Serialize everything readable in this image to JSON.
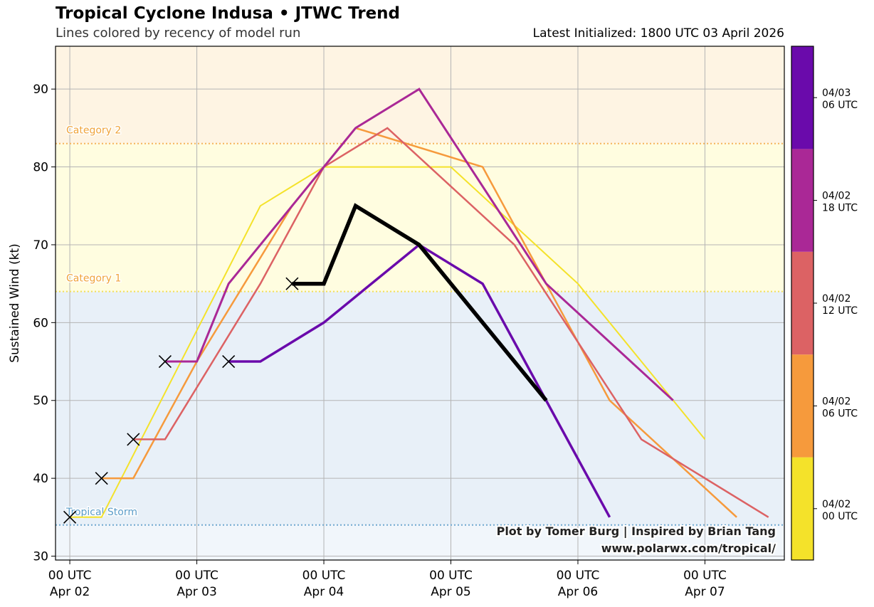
{
  "header": {
    "title": "Tropical Cyclone Indusa • JTWC Trend",
    "subtitle": "Lines colored by recency of model run",
    "latest": "Latest Initialized: 1800 UTC 03 April 2026"
  },
  "credits": {
    "line1": "Plot by Tomer Burg | Inspired by Brian Tang",
    "line2": "www.polarwx.com/tropical/"
  },
  "chart_data": {
    "type": "line",
    "title": "Tropical Cyclone Indusa • JTWC Trend",
    "subtitle": "Lines colored by recency of model run",
    "ylabel": "Sustained Wind (kt)",
    "ylim": [
      29.5,
      95.5
    ],
    "xlim": [
      "2026-04-01 21:18",
      "2026-04-07 15:00"
    ],
    "yticks": [
      30,
      40,
      50,
      60,
      70,
      80,
      90
    ],
    "xticks": [
      {
        "t": "2026-04-02 00:00",
        "l1": "00 UTC",
        "l2": "Apr 02"
      },
      {
        "t": "2026-04-03 00:00",
        "l1": "00 UTC",
        "l2": "Apr 03"
      },
      {
        "t": "2026-04-04 00:00",
        "l1": "00 UTC",
        "l2": "Apr 04"
      },
      {
        "t": "2026-04-05 00:00",
        "l1": "00 UTC",
        "l2": "Apr 05"
      },
      {
        "t": "2026-04-06 00:00",
        "l1": "00 UTC",
        "l2": "Apr 06"
      },
      {
        "t": "2026-04-07 00:00",
        "l1": "00 UTC",
        "l2": "Apr 07"
      }
    ],
    "grid": true,
    "thresholds": [
      {
        "label": "Tropical Storm",
        "value": 34,
        "color": "#6fa8d0",
        "text_color": "#5a9cc8"
      },
      {
        "label": "Category 1",
        "value": 64,
        "color": "#f2df5a",
        "text_color": "#f0a43a"
      },
      {
        "label": "Category 2",
        "value": 83,
        "color": "#f5b45a",
        "text_color": "#f0a43a"
      }
    ],
    "bands": [
      {
        "from": 29.5,
        "to": 34,
        "color": "#f1f6fb"
      },
      {
        "from": 34,
        "to": 64,
        "color": "#e8f0f8"
      },
      {
        "from": 64,
        "to": 83,
        "color": "#fffde0"
      },
      {
        "from": 83,
        "to": 95.5,
        "color": "#fef4e3"
      }
    ],
    "series": [
      {
        "run": "2026-04-02 00:00",
        "color": "#f4e22a",
        "width": 2,
        "x": [
          "2026-04-02 00:00",
          "2026-04-02 06:00",
          "2026-04-03 12:00",
          "2026-04-04 00:00",
          "2026-04-05 00:00",
          "2026-04-06 00:00",
          "2026-04-07 00:00"
        ],
        "y": [
          35,
          35,
          75,
          80,
          80,
          65,
          45
        ]
      },
      {
        "run": "2026-04-02 06:00",
        "color": "#f69a3c",
        "width": 2.5,
        "x": [
          "2026-04-02 06:00",
          "2026-04-02 12:00",
          "2026-04-03 00:00",
          "2026-04-03 18:00",
          "2026-04-04 06:00",
          "2026-04-05 06:00",
          "2026-04-06 06:00",
          "2026-04-07 06:00"
        ],
        "y": [
          40,
          40,
          55,
          75,
          85,
          80,
          50,
          35
        ]
      },
      {
        "run": "2026-04-02 12:00",
        "color": "#dc6264",
        "width": 2.5,
        "x": [
          "2026-04-02 12:00",
          "2026-04-02 18:00",
          "2026-04-03 12:00",
          "2026-04-04 00:00",
          "2026-04-04 12:00",
          "2026-04-05 12:00",
          "2026-04-06 12:00",
          "2026-04-07 12:00"
        ],
        "y": [
          45,
          45,
          65,
          80,
          85,
          70,
          45,
          35
        ]
      },
      {
        "run": "2026-04-02 18:00",
        "color": "#aa2896",
        "width": 3,
        "x": [
          "2026-04-02 18:00",
          "2026-04-03 00:00",
          "2026-04-03 06:00",
          "2026-04-04 06:00",
          "2026-04-04 18:00",
          "2026-04-05 18:00",
          "2026-04-06 18:00"
        ],
        "y": [
          55,
          55,
          65,
          85,
          90,
          65,
          50
        ]
      },
      {
        "run": "2026-04-03 06:00",
        "color": "#6a0aab",
        "width": 3.5,
        "x": [
          "2026-04-03 06:00",
          "2026-04-03 12:00",
          "2026-04-04 00:00",
          "2026-04-04 18:00",
          "2026-04-05 06:00",
          "2026-04-06 06:00"
        ],
        "y": [
          55,
          55,
          60,
          70,
          65,
          35
        ]
      },
      {
        "run": "2026-04-03 18:00",
        "color": "#000000",
        "width": 5.5,
        "x": [
          "2026-04-03 18:00",
          "2026-04-04 00:00",
          "2026-04-04 06:00",
          "2026-04-04 18:00",
          "2026-04-05 18:00"
        ],
        "y": [
          65,
          65,
          75,
          70,
          50
        ]
      }
    ],
    "init_markers": [
      {
        "x": "2026-04-02 00:00",
        "y": 35
      },
      {
        "x": "2026-04-02 06:00",
        "y": 40
      },
      {
        "x": "2026-04-02 12:00",
        "y": 45
      },
      {
        "x": "2026-04-02 18:00",
        "y": 55
      },
      {
        "x": "2026-04-03 06:00",
        "y": 55
      },
      {
        "x": "2026-04-03 18:00",
        "y": 65
      }
    ],
    "colorbar": {
      "segments": [
        {
          "color": "#f4e22a",
          "l1": "04/02",
          "l2": "00 UTC"
        },
        {
          "color": "#f69a3c",
          "l1": "04/02",
          "l2": "06 UTC"
        },
        {
          "color": "#dc6264",
          "l1": "04/02",
          "l2": "12 UTC"
        },
        {
          "color": "#aa2896",
          "l1": "04/02",
          "l2": "18 UTC"
        },
        {
          "color": "#6a0aab",
          "l1": "04/03",
          "l2": "06 UTC"
        }
      ]
    }
  }
}
